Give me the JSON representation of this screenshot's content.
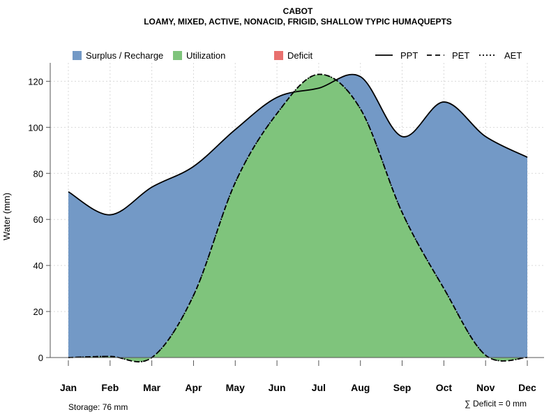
{
  "chart_data": {
    "type": "area",
    "title": "CABOT",
    "subtitle": "LOAMY, MIXED, ACTIVE, NONACID, FRIGID, SHALLOW TYPIC HUMAQUEPTS",
    "ylabel": "Water (mm)",
    "xlabel": "",
    "ylim": [
      0,
      128
    ],
    "yticks": [
      0,
      20,
      40,
      60,
      80,
      100,
      120
    ],
    "categories": [
      "Jan",
      "Feb",
      "Mar",
      "Apr",
      "May",
      "Jun",
      "Jul",
      "Aug",
      "Sep",
      "Oct",
      "Nov",
      "Dec"
    ],
    "series": [
      {
        "name": "PPT",
        "line": "solid",
        "values": [
          72,
          62,
          74,
          83,
          99,
          113,
          117,
          122,
          96,
          111,
          96,
          87
        ]
      },
      {
        "name": "PET",
        "line": "dashed",
        "values": [
          0,
          0.5,
          0,
          27,
          76,
          106,
          123,
          108,
          63,
          30,
          1,
          0
        ]
      },
      {
        "name": "AET",
        "line": "dotted",
        "values": [
          0,
          0.5,
          0,
          27,
          76,
          106,
          123,
          108,
          63,
          30,
          1,
          0
        ]
      }
    ],
    "legend": {
      "position": "top",
      "fills": [
        {
          "label": "Surplus / Recharge",
          "color": "#7399c6"
        },
        {
          "label": "Utilization",
          "color": "#7fc47c"
        },
        {
          "label": "Deficit",
          "color": "#e8706e"
        }
      ],
      "lines": [
        {
          "label": "PPT",
          "style": "solid"
        },
        {
          "label": "PET",
          "style": "dashed"
        },
        {
          "label": "AET",
          "style": "dotted"
        }
      ]
    },
    "grid": true,
    "annotations": {
      "storage": "Storage: 76 mm",
      "deficit": "∑ Deficit = 0 mm"
    }
  }
}
